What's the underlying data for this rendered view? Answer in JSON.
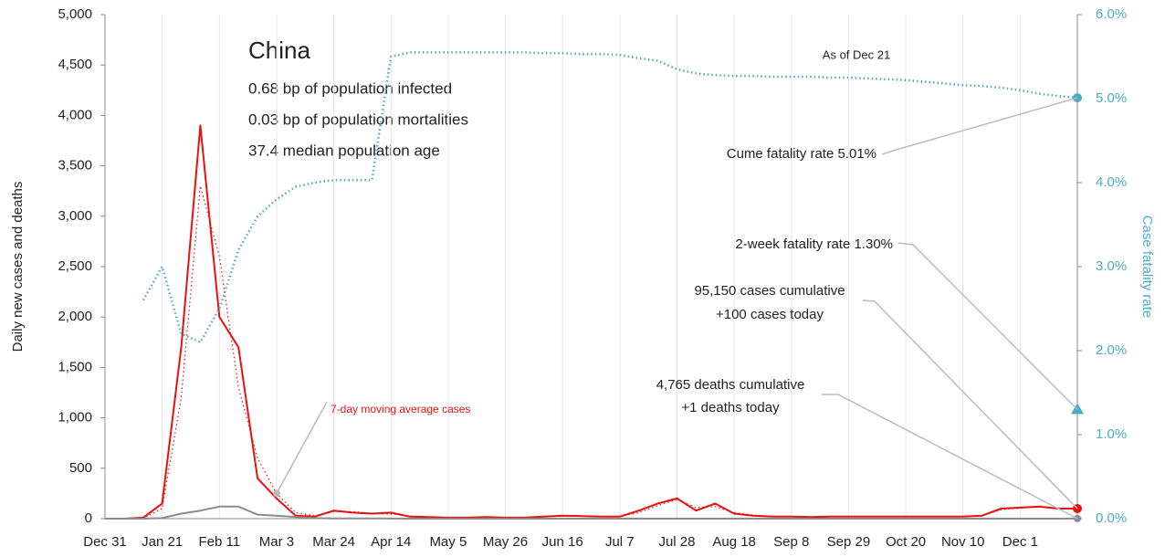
{
  "chart_data": {
    "type": "line",
    "title": "China",
    "notes": [
      "0.68 bp of population infected",
      "0.03 bp of population mortalities",
      "37.4 median population age"
    ],
    "ylabel": "Daily new cases and deaths",
    "y2label": "Case fatality rate",
    "categories": [
      "Dec 31",
      null,
      null,
      "Jan 21",
      null,
      null,
      "Feb 11",
      null,
      null,
      "Mar 3",
      null,
      null,
      "Mar 24",
      null,
      null,
      "Apr 14",
      null,
      null,
      "May 5",
      null,
      null,
      "May 26",
      null,
      null,
      "Jun 16",
      null,
      null,
      "Jul 7",
      null,
      null,
      "Jul 28",
      null,
      null,
      "Aug 18",
      null,
      null,
      "Sep 8",
      null,
      null,
      "Sep 29",
      null,
      null,
      "Oct 20",
      null,
      null,
      "Nov 10",
      null,
      null,
      "Dec 1",
      null,
      null,
      null
    ],
    "series": [
      {
        "color": "#e8110f",
        "style": "solid",
        "width": 2,
        "values": [
          0,
          0,
          10,
          150,
          1700,
          3900,
          2000,
          1700,
          400,
          200,
          30,
          20,
          80,
          60,
          50,
          60,
          20,
          15,
          10,
          10,
          15,
          10,
          10,
          20,
          30,
          25,
          20,
          20,
          80,
          150,
          200,
          80,
          150,
          50,
          30,
          20,
          20,
          15,
          20,
          20,
          20,
          20,
          20,
          20,
          20,
          20,
          30,
          100,
          110,
          120,
          100,
          100
        ]
      },
      {
        "name": "7-day moving average cases",
        "color": "#e8110f",
        "style": "dotted",
        "width": 1.2,
        "values": [
          0,
          0,
          5,
          100,
          1200,
          3300,
          2600,
          1300,
          600,
          250,
          60,
          30,
          70,
          70,
          50,
          45,
          25,
          15,
          12,
          10,
          12,
          10,
          12,
          18,
          25,
          25,
          20,
          22,
          60,
          130,
          190,
          110,
          120,
          60,
          35,
          22,
          20,
          17,
          18,
          20,
          20,
          20,
          20,
          20,
          20,
          20,
          28,
          90,
          105,
          115,
          105,
          100
        ]
      },
      {
        "color": "#8c8c8c",
        "style": "solid",
        "width": 2,
        "values": [
          0,
          0,
          0,
          5,
          50,
          80,
          120,
          120,
          40,
          30,
          15,
          5,
          3,
          3,
          2,
          1,
          0,
          0,
          0,
          0,
          0,
          0,
          0,
          0,
          0,
          0,
          0,
          0,
          0,
          0,
          0,
          0,
          0,
          0,
          0,
          0,
          0,
          0,
          0,
          0,
          0,
          0,
          0,
          0,
          0,
          0,
          0,
          0,
          0,
          0,
          0,
          1
        ]
      },
      {
        "color": "#4bacc6",
        "style": "dotted",
        "width": 2.5,
        "axis": "y2",
        "values": [
          null,
          null,
          2.6,
          3.0,
          2.2,
          2.1,
          2.5,
          3.2,
          3.6,
          3.8,
          3.95,
          4.0,
          4.03,
          4.03,
          4.03,
          5.5,
          5.55,
          5.55,
          5.55,
          5.55,
          5.55,
          5.55,
          5.55,
          5.54,
          5.54,
          5.53,
          5.53,
          5.52,
          5.48,
          5.45,
          5.35,
          5.3,
          5.28,
          5.27,
          5.27,
          5.26,
          5.26,
          5.26,
          5.25,
          5.25,
          5.24,
          5.23,
          5.22,
          5.2,
          5.18,
          5.16,
          5.15,
          5.13,
          5.1,
          5.06,
          5.03,
          5.01
        ]
      }
    ],
    "markers": [
      {
        "value": 1.3,
        "axis": "y2",
        "shape": "triangle",
        "color": "#4bacc6"
      }
    ],
    "annotations": [
      "As of Dec 21",
      "Cume fatality rate 5.01%",
      "2-week fatality rate 1.30%",
      "95,150 cases cumulative",
      "+100 cases today",
      "4,765 deaths cumulative",
      "+1 deaths today"
    ],
    "ylim": [
      0,
      5000
    ],
    "yticks": [
      0,
      500,
      {
        "value": 1000,
        "label": "1,000"
      },
      {
        "value": 1500,
        "label": "1,500"
      },
      {
        "value": 2000,
        "label": "2,000"
      },
      {
        "value": 2500,
        "label": "2,500"
      },
      {
        "value": 3000,
        "label": "3,000"
      },
      {
        "value": 3500,
        "label": "3,500"
      },
      {
        "value": 4000,
        "label": "4,000"
      },
      {
        "value": 4500,
        "label": "4,500"
      },
      {
        "value": 5000,
        "label": "5,000"
      }
    ],
    "y2lim": [
      0,
      6
    ],
    "y2ticks": [
      {
        "value": 0,
        "label": "0.0%"
      },
      {
        "value": 1,
        "label": "1.0%"
      },
      {
        "value": 2,
        "label": "2.0%"
      },
      {
        "value": 3,
        "label": "3.0%"
      },
      {
        "value": 4,
        "label": "4.0%"
      },
      {
        "value": 5,
        "label": "5.0%"
      },
      {
        "value": 6,
        "label": "6.0%"
      }
    ],
    "grid": true
  }
}
